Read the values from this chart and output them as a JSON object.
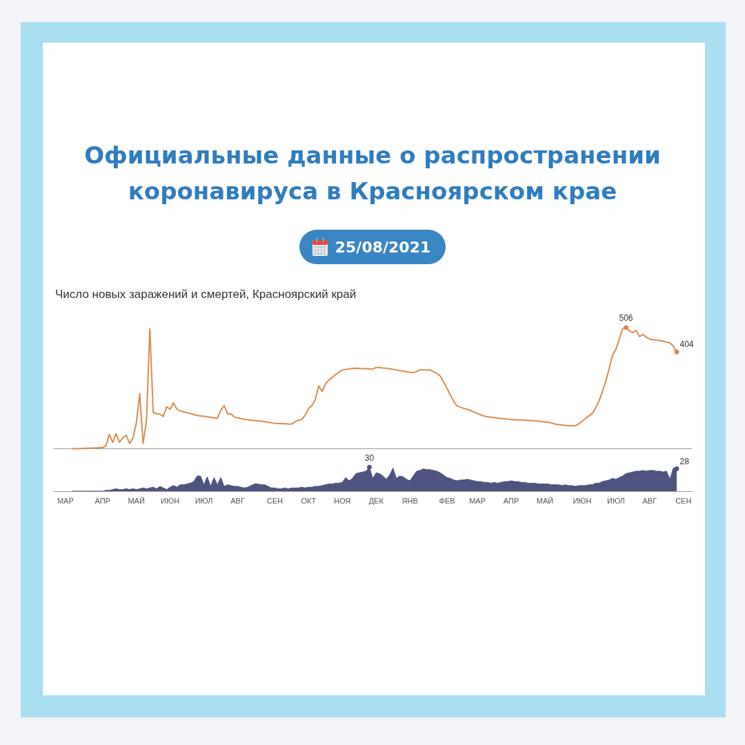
{
  "chart_data": [
    {
      "type": "line",
      "title": "Официальные данные о распространении коронавируса в Красноярском крае",
      "subtitle": "Число новых заражений и смертей, Красноярский край",
      "annotations": [
        "25/08/2021"
      ],
      "categories": [
        null,
        null,
        null,
        null,
        null,
        null,
        null,
        null,
        null,
        null,
        null,
        null,
        null,
        null,
        null,
        null,
        null,
        null,
        null,
        null,
        null,
        null,
        null,
        null,
        null,
        null,
        null,
        null,
        null,
        null,
        null,
        null,
        null,
        null,
        null,
        null,
        null,
        null,
        null,
        null,
        null,
        null,
        null,
        null,
        null,
        null,
        null,
        null,
        null,
        null,
        null,
        null,
        null,
        null,
        null,
        null,
        null,
        null,
        null,
        null,
        null,
        null,
        null,
        null,
        null,
        null,
        null,
        null,
        null,
        null,
        null,
        null,
        null,
        null,
        null,
        null,
        null,
        null,
        null,
        null,
        null,
        null,
        null,
        null,
        null,
        null,
        null,
        null,
        null,
        null,
        null,
        null,
        null,
        null,
        null,
        null,
        null,
        null,
        null,
        null,
        null,
        null,
        null,
        null,
        null,
        null,
        null,
        null,
        null,
        null,
        null,
        null,
        null,
        null,
        null,
        null,
        null,
        null,
        null,
        null,
        null,
        null,
        null,
        null,
        null,
        null,
        null,
        null,
        null,
        null,
        null,
        null,
        null,
        null,
        null,
        null,
        null,
        null,
        null,
        null,
        null,
        null,
        null,
        null,
        null,
        null,
        null,
        null,
        null,
        null,
        null,
        null,
        null,
        null,
        null,
        null,
        null,
        null,
        null,
        null,
        null,
        null,
        null,
        null,
        null,
        null,
        null,
        null,
        null,
        null,
        null,
        null,
        null,
        null,
        null,
        null,
        null,
        null,
        null,
        null,
        null,
        null,
        null,
        null,
        null,
        null,
        null,
        null,
        null
      ],
      "values": [
        null,
        null,
        null,
        null,
        null,
        0,
        0,
        1,
        1,
        2,
        2,
        3,
        3,
        4,
        5,
        12,
        60,
        26,
        63,
        26,
        45,
        57,
        22,
        45,
        108,
        230,
        22,
        117,
        500,
        151,
        146,
        144,
        135,
        175,
        165,
        192,
        165,
        158,
        154,
        150,
        147,
        143,
        139,
        137,
        135,
        133,
        131,
        129,
        127,
        160,
        180,
        145,
        146,
        132,
        129,
        126,
        123,
        121,
        119,
        117,
        116,
        115,
        113,
        111,
        108,
        106,
        105,
        104,
        104,
        103,
        103,
        113,
        119,
        122,
        140,
        168,
        180,
        206,
        262,
        239,
        270,
        286,
        298,
        309,
        319,
        329,
        331,
        333,
        335,
        336,
        335,
        334,
        334,
        333,
        332,
        339,
        339,
        337,
        336,
        334,
        331,
        329,
        326,
        324,
        321,
        319,
        317,
        322,
        329,
        329,
        329,
        329,
        321,
        314,
        303,
        277,
        252,
        223,
        197,
        178,
        173,
        168,
        164,
        159,
        153,
        147,
        141,
        136,
        134,
        131,
        130,
        128,
        126,
        125,
        123,
        122,
        121,
        120,
        120,
        119,
        118,
        117,
        116,
        115,
        113,
        112,
        110,
        107,
        103,
        101,
        99,
        97,
        96,
        96,
        96,
        103,
        115,
        126,
        137,
        147,
        170,
        199,
        238,
        281,
        333,
        391,
        415,
        458,
        501,
        506,
        492,
        485,
        494,
        468,
        477,
        466,
        457,
        455,
        453,
        451,
        448,
        445,
        442,
        428,
        404,
        null,
        null,
        null,
        null
      ],
      "value_labels": [
        null,
        null,
        null,
        null,
        null,
        null,
        null,
        null,
        null,
        null,
        null,
        null,
        null,
        null,
        null,
        null,
        null,
        null,
        null,
        null,
        null,
        null,
        null,
        null,
        null,
        null,
        null,
        null,
        null,
        null,
        null,
        null,
        null,
        null,
        null,
        null,
        null,
        null,
        null,
        null,
        null,
        null,
        null,
        null,
        null,
        null,
        null,
        null,
        null,
        null,
        null,
        null,
        null,
        null,
        null,
        null,
        null,
        null,
        null,
        null,
        null,
        null,
        null,
        null,
        null,
        null,
        null,
        null,
        null,
        null,
        null,
        null,
        null,
        null,
        null,
        null,
        null,
        null,
        null,
        null,
        null,
        null,
        null,
        null,
        null,
        null,
        null,
        null,
        null,
        null,
        null,
        null,
        null,
        null,
        null,
        null,
        null,
        null,
        null,
        null,
        null,
        null,
        null,
        null,
        null,
        null,
        null,
        null,
        null,
        null,
        null,
        null,
        null,
        null,
        null,
        null,
        null,
        null,
        null,
        null,
        null,
        null,
        null,
        null,
        null,
        null,
        null,
        null,
        null,
        null,
        null,
        null,
        null,
        null,
        null,
        null,
        null,
        null,
        null,
        null,
        null,
        null,
        null,
        null,
        null,
        null,
        null,
        null,
        null,
        null,
        null,
        null,
        null,
        null,
        null,
        null,
        null,
        null,
        null,
        null,
        null,
        null,
        null,
        null,
        null,
        null,
        null,
        null,
        null,
        "506",
        null,
        null,
        null,
        null,
        null,
        null,
        null,
        null,
        null,
        null,
        null,
        null,
        null,
        null,
        "404",
        null,
        null,
        null,
        null
      ],
      "color": "#d98c4e",
      "tick_labels": false
    },
    {
      "type": "area",
      "categories": [
        null,
        null,
        null,
        "МАР",
        null,
        null,
        null,
        null,
        null,
        null,
        null,
        null,
        null,
        null,
        "АПР",
        null,
        null,
        null,
        null,
        null,
        null,
        null,
        null,
        null,
        "МАЙ",
        null,
        null,
        null,
        null,
        null,
        null,
        null,
        null,
        null,
        "ИЮН",
        null,
        null,
        null,
        null,
        null,
        null,
        null,
        null,
        null,
        "ИЮЛ",
        null,
        null,
        null,
        null,
        null,
        null,
        null,
        null,
        null,
        "АВГ",
        null,
        null,
        null,
        null,
        null,
        null,
        null,
        null,
        null,
        null,
        "СЕН",
        null,
        null,
        null,
        null,
        null,
        null,
        null,
        null,
        null,
        "ОКТ",
        null,
        null,
        null,
        null,
        null,
        null,
        null,
        null,
        null,
        "НОЯ",
        null,
        null,
        null,
        null,
        null,
        null,
        null,
        null,
        null,
        "ДЕК",
        null,
        null,
        null,
        null,
        null,
        null,
        null,
        null,
        null,
        "ЯНВ",
        null,
        null,
        null,
        null,
        null,
        null,
        null,
        null,
        null,
        null,
        "ФЕВ",
        null,
        null,
        null,
        null,
        null,
        null,
        null,
        null,
        "МАР",
        null,
        null,
        null,
        null,
        null,
        null,
        null,
        null,
        null,
        "АПР",
        null,
        null,
        null,
        null,
        null,
        null,
        null,
        null,
        null,
        "МАЙ",
        null,
        null,
        null,
        null,
        null,
        null,
        null,
        null,
        null,
        null,
        "ИЮН",
        null,
        null,
        null,
        null,
        null,
        null,
        null,
        null,
        null,
        "ИЮЛ",
        null,
        null,
        null,
        null,
        null,
        null,
        null,
        null,
        null,
        "АВГ",
        null,
        null,
        null,
        null,
        null,
        null,
        null,
        null,
        null,
        "СЕН",
        null,
        null
      ],
      "values": [
        null,
        null,
        null,
        null,
        null,
        0,
        0,
        0,
        0,
        0,
        0,
        0,
        0,
        0,
        0,
        1,
        1,
        2,
        3,
        2,
        2,
        3,
        2,
        3,
        2,
        3,
        4,
        3,
        4,
        5,
        3,
        6,
        4,
        2,
        5,
        7,
        5,
        8,
        8,
        9,
        10,
        12,
        19,
        19,
        8,
        18,
        6,
        17,
        8,
        17,
        6,
        8,
        7,
        6,
        6,
        5,
        4,
        5,
        7,
        9,
        9,
        8,
        8,
        6,
        4,
        4,
        3,
        3,
        4,
        3,
        4,
        4,
        4,
        5,
        4,
        5,
        5,
        6,
        6,
        7,
        8,
        9,
        9,
        10,
        10,
        11,
        17,
        13,
        16,
        22,
        23,
        24,
        25,
        30,
        16,
        23,
        22,
        19,
        15,
        20,
        29,
        16,
        19,
        18,
        15,
        13,
        19,
        25,
        26,
        28,
        27,
        27,
        26,
        25,
        23,
        20,
        17,
        16,
        14,
        13,
        14,
        14,
        15,
        14,
        13,
        12,
        12,
        11,
        11,
        10,
        11,
        10,
        11,
        12,
        12,
        13,
        12,
        12,
        11,
        11,
        10,
        10,
        10,
        9,
        9,
        9,
        9,
        8,
        8,
        8,
        7,
        8,
        7,
        7,
        6,
        7,
        7,
        7,
        8,
        8,
        10,
        10,
        12,
        13,
        14,
        16,
        15,
        17,
        19,
        22,
        23,
        24,
        25,
        25,
        26,
        25,
        26,
        26,
        25,
        25,
        24,
        25,
        15,
        29,
        28,
        null,
        null,
        null,
        null
      ],
      "value_labels": [
        null,
        null,
        null,
        null,
        null,
        null,
        null,
        null,
        null,
        null,
        null,
        null,
        null,
        null,
        null,
        null,
        null,
        null,
        null,
        null,
        null,
        null,
        null,
        null,
        null,
        null,
        null,
        null,
        null,
        null,
        null,
        null,
        null,
        null,
        null,
        null,
        null,
        null,
        null,
        null,
        null,
        null,
        null,
        null,
        null,
        null,
        null,
        null,
        null,
        null,
        null,
        null,
        null,
        null,
        null,
        null,
        null,
        null,
        null,
        null,
        null,
        null,
        null,
        null,
        null,
        null,
        null,
        null,
        null,
        null,
        null,
        null,
        null,
        null,
        null,
        null,
        null,
        null,
        null,
        null,
        null,
        null,
        null,
        null,
        null,
        null,
        null,
        null,
        null,
        null,
        null,
        null,
        null,
        "30",
        null,
        null,
        null,
        null,
        null,
        null,
        null,
        null,
        null,
        null,
        null,
        null,
        null,
        null,
        null,
        null,
        null,
        null,
        null,
        null,
        null,
        null,
        null,
        null,
        null,
        null,
        null,
        null,
        null,
        null,
        null,
        null,
        null,
        null,
        null,
        null,
        null,
        null,
        null,
        null,
        null,
        null,
        null,
        null,
        null,
        null,
        null,
        null,
        null,
        null,
        null,
        null,
        null,
        null,
        null,
        null,
        null,
        null,
        null,
        null,
        null,
        null,
        null,
        null,
        null,
        null,
        null,
        null,
        null,
        null,
        null,
        null,
        null,
        null,
        null,
        null,
        null,
        null,
        null,
        null,
        null,
        null,
        null,
        null,
        null,
        null,
        null,
        null,
        null,
        null,
        "28",
        null,
        null,
        null,
        null
      ],
      "color": "#4f5380",
      "tick_labels": "x"
    }
  ]
}
